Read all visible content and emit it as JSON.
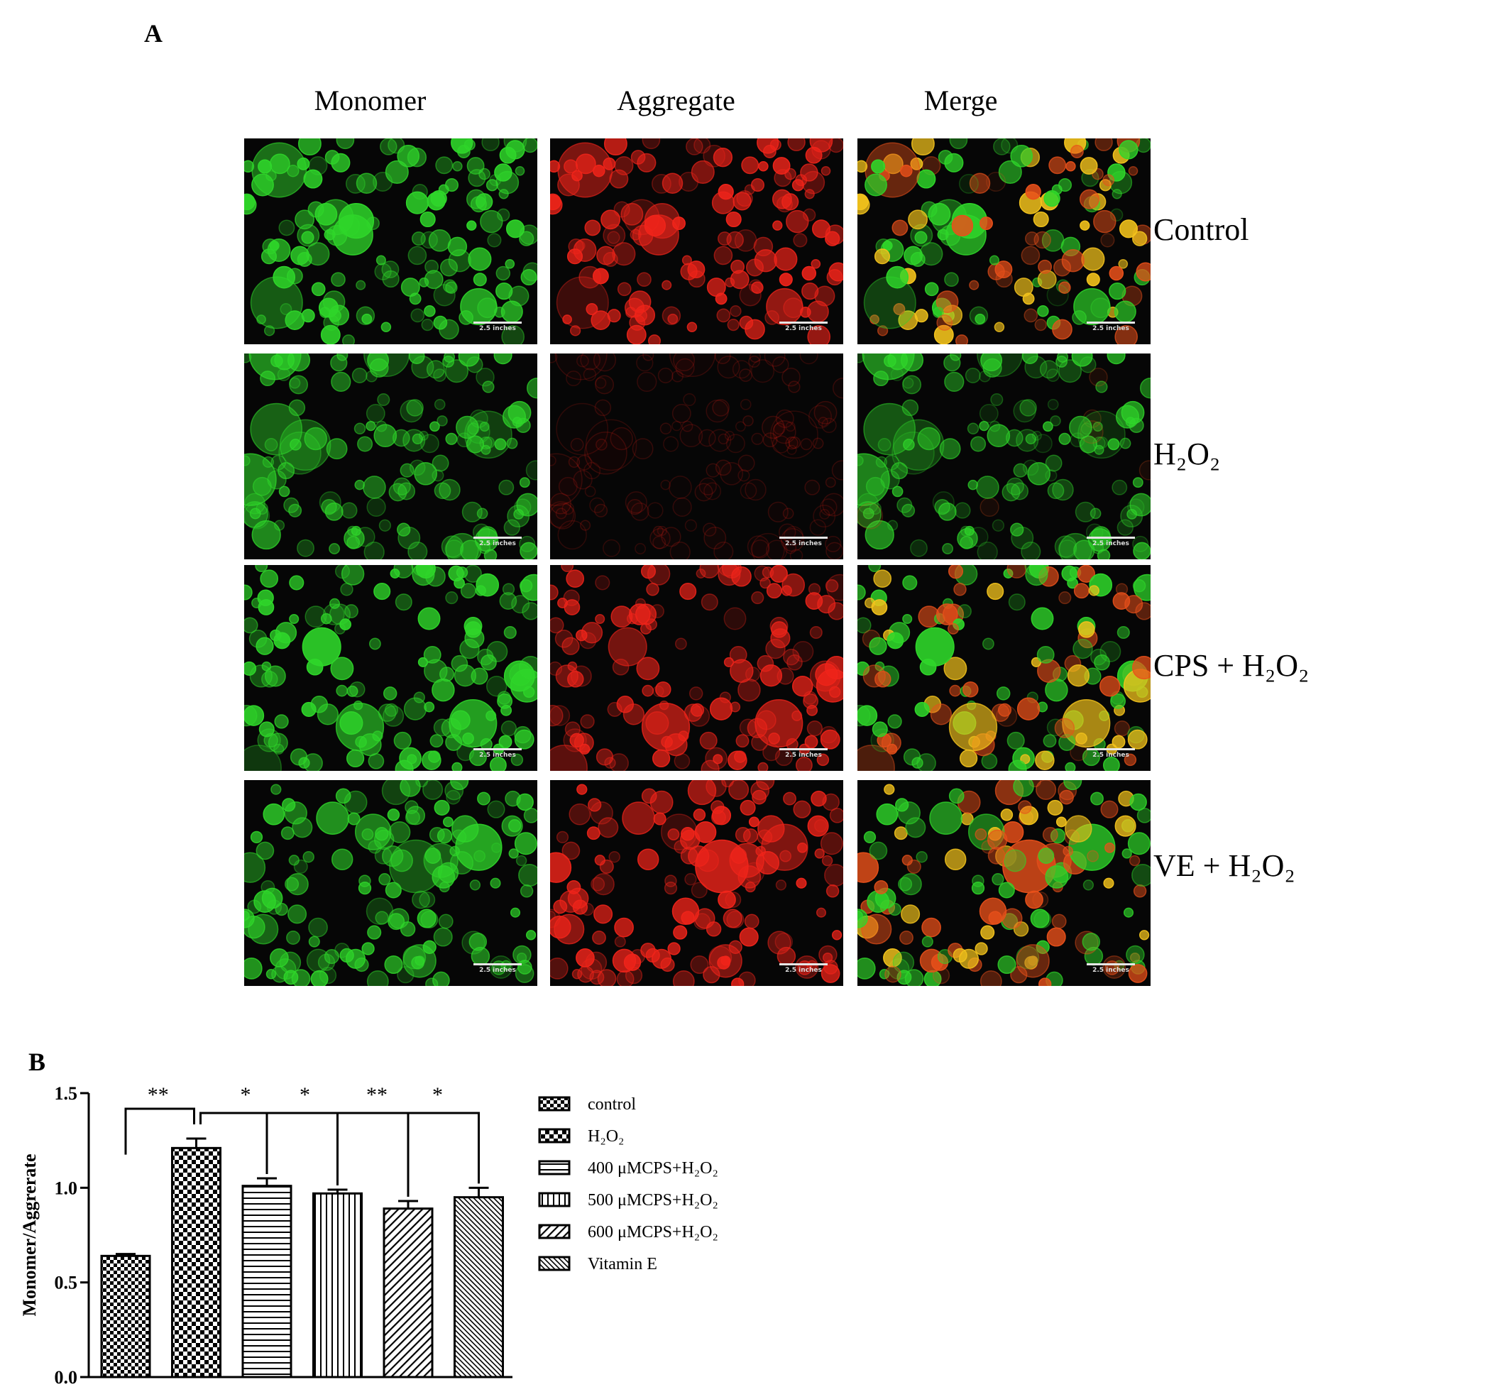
{
  "panel_a": {
    "letter": "A",
    "columns": [
      "Monomer",
      "Aggregate",
      "Merge"
    ],
    "rows": [
      {
        "label": "Control",
        "monomer_level": 0.9,
        "aggregate_level": 0.9
      },
      {
        "label": "H₂O₂",
        "monomer_level": 0.7,
        "aggregate_level": 0.05
      },
      {
        "label": "CPS + H₂O₂",
        "monomer_level": 0.9,
        "aggregate_level": 0.75
      },
      {
        "label": "VE + H₂O₂",
        "monomer_level": 0.8,
        "aggregate_level": 0.85
      }
    ],
    "scale_bar_label": "2.5 inches",
    "colors": {
      "monomer": "#2fd62a",
      "aggregate": "#f0241a",
      "merge": "#f2c21c",
      "background": "#060606"
    }
  },
  "panel_b": {
    "letter": "B",
    "significance": [
      "**",
      "*",
      "*",
      "**",
      "*"
    ]
  },
  "chart_data": {
    "type": "bar",
    "categories": [
      "control",
      "H₂O₂",
      "400 μMCPS+H₂O₂",
      "500 μMCPS+H₂O₂",
      "600 μMCPS+H₂O₂",
      "Vitamin E"
    ],
    "values": [
      0.64,
      1.21,
      1.01,
      0.97,
      0.89,
      0.95
    ],
    "errors": [
      0.01,
      0.05,
      0.04,
      0.02,
      0.04,
      0.05
    ],
    "patterns": [
      "checker-small",
      "checker-large",
      "horizontal",
      "vertical",
      "diagonal-sparse",
      "diagonal-dense"
    ],
    "ylabel": "Monomer/Aggrerate",
    "xlabel": "",
    "ylim": [
      0,
      1.5
    ],
    "yticks": [
      "0.0",
      "0.5",
      "1.0",
      "1.5"
    ],
    "legend": [
      "control",
      "H₂O₂",
      "400 μMCPS+H₂O₂",
      "500 μMCPS+H₂O₂",
      "600 μMCPS+H₂O₂",
      "Vitamin E"
    ],
    "legend_position": "right",
    "grid": false
  }
}
